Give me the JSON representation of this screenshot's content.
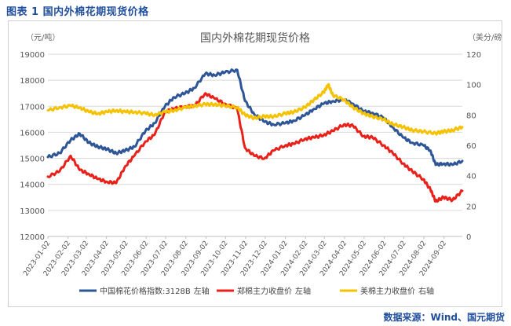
{
  "figure_caption": "图表 1 国内外棉花期现货价格",
  "source": "数据来源：Wind、国元期货",
  "chart_data": {
    "type": "line",
    "title": "国内外棉花期现货价格",
    "y_left_unit": "（元/吨）",
    "y_right_unit": "（美分/磅）",
    "y_left_range": [
      12000,
      19000
    ],
    "y_left_ticks": [
      "12000",
      "13000",
      "14000",
      "15000",
      "16000",
      "17000",
      "18000",
      "19000"
    ],
    "y_right_range": [
      0,
      120
    ],
    "y_right_ticks": [
      "0",
      "20",
      "40",
      "60",
      "80",
      "100",
      "120"
    ],
    "x_range": [
      "2023-01-02",
      "2024-09-30"
    ],
    "x_ticks": [
      "2023-01-02",
      "2023-02-02",
      "2023-03-02",
      "2023-04-02",
      "2023-05-02",
      "2023-06-02",
      "2023-07-02",
      "2023-08-02",
      "2023-09-02",
      "2023-10-02",
      "2023-11-02",
      "2023-12-02",
      "2024-01-02",
      "2024-02-02",
      "2024-03-02",
      "2024-04-02",
      "2024-05-02",
      "2024-06-02",
      "2024-07-02",
      "2024-08-02",
      "2024-09-02"
    ],
    "grid": true,
    "legend_position": "bottom",
    "series": [
      {
        "name": "中国棉花价格指数:3128B",
        "axis_label": "左轴",
        "axis": "left",
        "color": "#2e5596",
        "points": [
          [
            "2023-01-02",
            15050
          ],
          [
            "2023-01-20",
            15200
          ],
          [
            "2023-02-06",
            15700
          ],
          [
            "2023-02-20",
            15950
          ],
          [
            "2023-03-06",
            15600
          ],
          [
            "2023-03-20",
            15450
          ],
          [
            "2023-04-03",
            15350
          ],
          [
            "2023-04-17",
            15200
          ],
          [
            "2023-05-01",
            15300
          ],
          [
            "2023-05-15",
            15450
          ],
          [
            "2023-06-01",
            16050
          ],
          [
            "2023-06-15",
            16350
          ],
          [
            "2023-07-01",
            17000
          ],
          [
            "2023-07-15",
            17350
          ],
          [
            "2023-08-01",
            17500
          ],
          [
            "2023-08-15",
            17700
          ],
          [
            "2023-09-01",
            18250
          ],
          [
            "2023-09-15",
            18200
          ],
          [
            "2023-10-01",
            18300
          ],
          [
            "2023-10-20",
            18400
          ],
          [
            "2023-11-01",
            17200
          ],
          [
            "2023-11-15",
            16700
          ],
          [
            "2023-12-01",
            16400
          ],
          [
            "2023-12-15",
            16300
          ],
          [
            "2024-01-02",
            16350
          ],
          [
            "2024-01-15",
            16450
          ],
          [
            "2024-02-01",
            16650
          ],
          [
            "2024-02-15",
            16900
          ],
          [
            "2024-03-01",
            17100
          ],
          [
            "2024-03-15",
            17200
          ],
          [
            "2024-04-01",
            17250
          ],
          [
            "2024-04-15",
            17100
          ],
          [
            "2024-05-01",
            16800
          ],
          [
            "2024-05-15",
            16750
          ],
          [
            "2024-06-01",
            16550
          ],
          [
            "2024-06-15",
            16200
          ],
          [
            "2024-07-01",
            15800
          ],
          [
            "2024-07-15",
            15600
          ],
          [
            "2024-08-01",
            15500
          ],
          [
            "2024-08-12",
            15300
          ],
          [
            "2024-08-20",
            14750
          ],
          [
            "2024-09-01",
            14800
          ],
          [
            "2024-09-15",
            14750
          ],
          [
            "2024-09-30",
            14900
          ]
        ]
      },
      {
        "name": "郑棉主力收盘价",
        "axis_label": "左轴",
        "axis": "left",
        "color": "#e8221b",
        "points": [
          [
            "2023-01-02",
            14300
          ],
          [
            "2023-01-20",
            14500
          ],
          [
            "2023-02-06",
            15100
          ],
          [
            "2023-02-20",
            14550
          ],
          [
            "2023-03-06",
            14400
          ],
          [
            "2023-03-20",
            14200
          ],
          [
            "2023-04-03",
            14100
          ],
          [
            "2023-04-17",
            14050
          ],
          [
            "2023-05-01",
            14700
          ],
          [
            "2023-05-15",
            15100
          ],
          [
            "2023-06-01",
            15650
          ],
          [
            "2023-06-15",
            15900
          ],
          [
            "2023-07-01",
            16800
          ],
          [
            "2023-07-15",
            16900
          ],
          [
            "2023-08-01",
            17000
          ],
          [
            "2023-08-15",
            17000
          ],
          [
            "2023-09-01",
            17500
          ],
          [
            "2023-09-15",
            17300
          ],
          [
            "2023-10-01",
            17100
          ],
          [
            "2023-10-20",
            16900
          ],
          [
            "2023-11-01",
            15400
          ],
          [
            "2023-11-15",
            15100
          ],
          [
            "2023-12-01",
            15000
          ],
          [
            "2023-12-15",
            15300
          ],
          [
            "2024-01-02",
            15500
          ],
          [
            "2024-01-15",
            15550
          ],
          [
            "2024-02-01",
            15750
          ],
          [
            "2024-02-15",
            15800
          ],
          [
            "2024-03-01",
            15900
          ],
          [
            "2024-03-15",
            16050
          ],
          [
            "2024-04-01",
            16300
          ],
          [
            "2024-04-15",
            16250
          ],
          [
            "2024-05-01",
            15850
          ],
          [
            "2024-05-15",
            15800
          ],
          [
            "2024-06-01",
            15500
          ],
          [
            "2024-06-15",
            15200
          ],
          [
            "2024-07-01",
            14800
          ],
          [
            "2024-07-15",
            14500
          ],
          [
            "2024-08-01",
            14200
          ],
          [
            "2024-08-12",
            13800
          ],
          [
            "2024-08-20",
            13350
          ],
          [
            "2024-09-01",
            13500
          ],
          [
            "2024-09-15",
            13400
          ],
          [
            "2024-09-30",
            13750
          ]
        ]
      },
      {
        "name": "美棉主力收盘价",
        "axis_label": "右轴",
        "axis": "right",
        "color": "#f5c200",
        "points": [
          [
            "2023-01-02",
            83
          ],
          [
            "2023-01-20",
            85
          ],
          [
            "2023-02-06",
            86
          ],
          [
            "2023-02-20",
            85
          ],
          [
            "2023-03-06",
            82
          ],
          [
            "2023-03-20",
            81
          ],
          [
            "2023-04-03",
            82
          ],
          [
            "2023-04-17",
            83
          ],
          [
            "2023-05-01",
            82
          ],
          [
            "2023-05-15",
            82
          ],
          [
            "2023-06-01",
            81
          ],
          [
            "2023-06-15",
            80
          ],
          [
            "2023-07-01",
            82
          ],
          [
            "2023-07-15",
            83
          ],
          [
            "2023-08-01",
            85
          ],
          [
            "2023-08-15",
            86
          ],
          [
            "2023-09-01",
            87
          ],
          [
            "2023-09-15",
            87
          ],
          [
            "2023-10-01",
            86
          ],
          [
            "2023-10-20",
            85
          ],
          [
            "2023-11-01",
            80
          ],
          [
            "2023-11-15",
            78
          ],
          [
            "2023-12-01",
            79
          ],
          [
            "2023-12-15",
            79
          ],
          [
            "2024-01-02",
            81
          ],
          [
            "2024-01-15",
            82
          ],
          [
            "2024-02-01",
            85
          ],
          [
            "2024-02-15",
            90
          ],
          [
            "2024-03-01",
            95
          ],
          [
            "2024-03-08",
            100
          ],
          [
            "2024-03-15",
            93
          ],
          [
            "2024-04-01",
            90
          ],
          [
            "2024-04-15",
            85
          ],
          [
            "2024-05-01",
            81
          ],
          [
            "2024-05-15",
            79
          ],
          [
            "2024-06-01",
            77
          ],
          [
            "2024-06-15",
            74
          ],
          [
            "2024-07-01",
            72
          ],
          [
            "2024-07-15",
            70
          ],
          [
            "2024-08-01",
            69
          ],
          [
            "2024-08-20",
            68
          ],
          [
            "2024-09-01",
            69
          ],
          [
            "2024-09-15",
            70
          ],
          [
            "2024-09-30",
            72
          ]
        ]
      }
    ]
  }
}
